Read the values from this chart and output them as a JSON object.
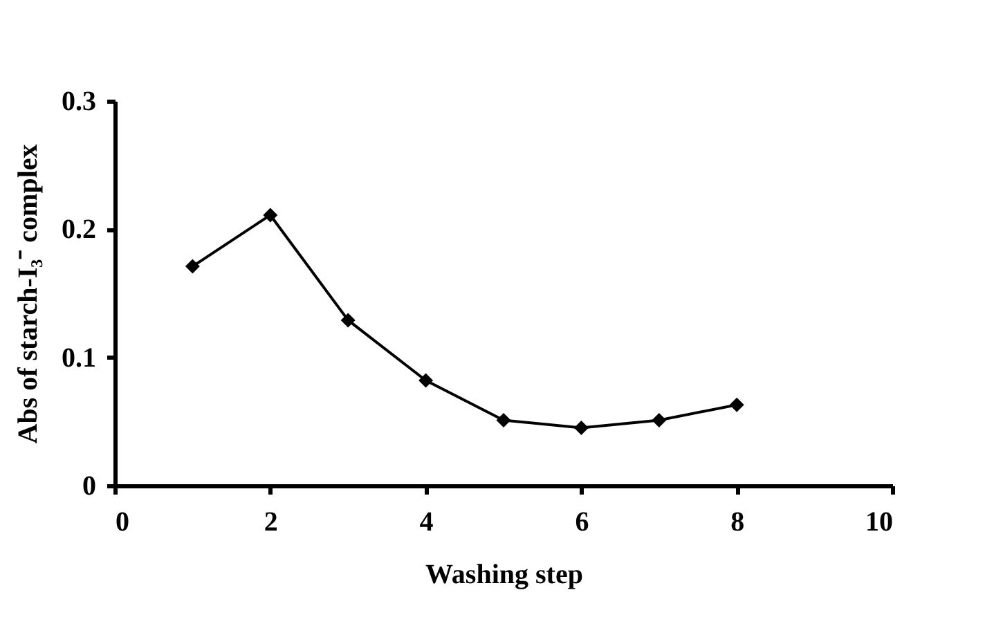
{
  "chart_data": {
    "type": "line",
    "xlabel": "Washing step",
    "ylabel": "Abs of starch-I₃⁻ complex",
    "x": [
      1,
      2,
      3,
      4,
      5,
      6,
      7,
      8
    ],
    "series": [
      {
        "color": "#000000",
        "values": [
          0.171,
          0.211,
          0.129,
          0.082,
          0.051,
          0.045,
          0.051,
          0.063
        ]
      }
    ],
    "xlim": [
      0,
      10
    ],
    "xticks": [
      0,
      2,
      4,
      6,
      8,
      10
    ],
    "ylim": [
      0,
      0.3
    ],
    "yticks": [
      0,
      0.1,
      0.2,
      0.3
    ],
    "grid": false,
    "legend": false,
    "marker": "diamond",
    "line_style": "solid"
  }
}
